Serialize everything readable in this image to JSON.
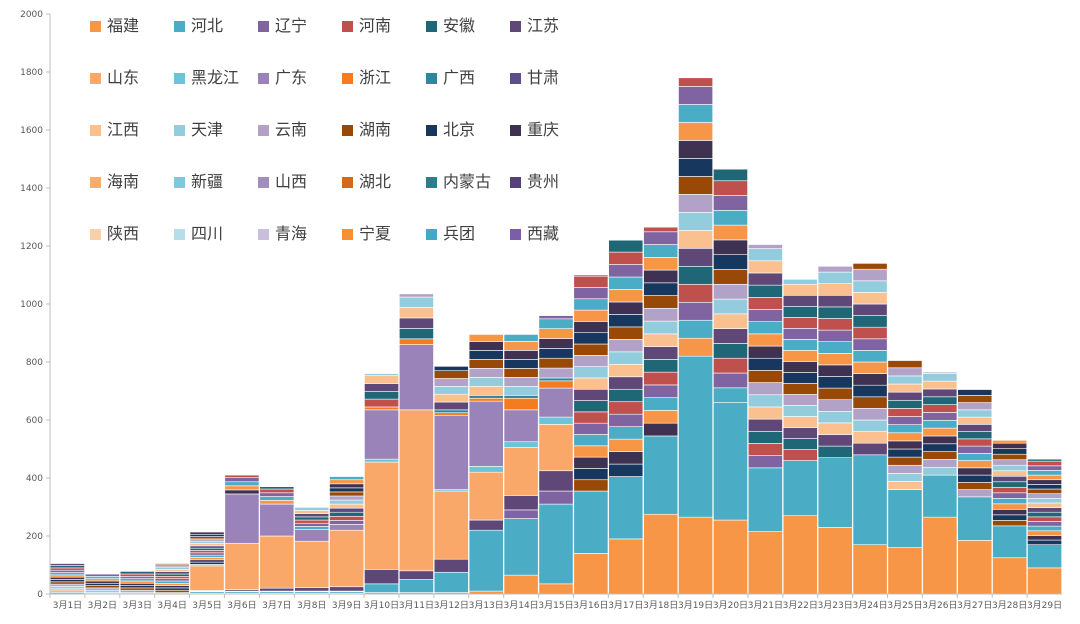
{
  "chart_data": {
    "type": "bar",
    "stacked": true,
    "title": "",
    "xlabel": "",
    "ylabel": "",
    "ylim": [
      0,
      2000
    ],
    "yticks": [
      0,
      200,
      400,
      600,
      800,
      1000,
      1200,
      1400,
      1600,
      1800,
      2000
    ],
    "grid": false,
    "legend_position": "top-left",
    "categories": [
      "3月1日",
      "3月2日",
      "3月3日",
      "3月4日",
      "3月5日",
      "3月6日",
      "3月7日",
      "3月8日",
      "3月9日",
      "3月10日",
      "3月11日",
      "3月12日",
      "3月13日",
      "3月14日",
      "3月15日",
      "3月16日",
      "3月17日",
      "3月18日",
      "3月19日",
      "3月20日",
      "3月21日",
      "3月22日",
      "3月23日",
      "3月24日",
      "3月25日",
      "3月26日",
      "3月27日",
      "3月28日",
      "3月29日"
    ],
    "series": [
      {
        "name": "福建",
        "color": "#f79646",
        "values": [
          5,
          2,
          2,
          2,
          3,
          3,
          3,
          3,
          3,
          5,
          5,
          5,
          10,
          65,
          35,
          140,
          190,
          275,
          265,
          255,
          215,
          270,
          230,
          170,
          160,
          265,
          185,
          125,
          90
        ]
      },
      {
        "name": "河北",
        "color": "#4bacc6",
        "values": [
          5,
          3,
          3,
          3,
          5,
          5,
          5,
          5,
          5,
          30,
          45,
          70,
          210,
          195,
          275,
          215,
          215,
          270,
          555,
          405,
          220,
          190,
          240,
          310,
          200,
          145,
          150,
          110,
          80
        ]
      },
      {
        "name": "辽宁",
        "color": "#8064a2",
        "values": [
          0,
          0,
          0,
          0,
          2,
          0,
          0,
          0,
          0,
          0,
          0,
          0,
          0,
          30,
          45,
          0,
          0,
          0,
          0,
          0,
          0,
          0,
          0,
          0,
          0,
          0,
          0,
          0,
          0
        ]
      },
      {
        "name": "河南",
        "color": "#c0504d",
        "values": [
          0,
          0,
          0,
          0,
          2,
          0,
          2,
          2,
          2,
          0,
          0,
          0,
          0,
          0,
          0,
          0,
          0,
          0,
          0,
          0,
          0,
          0,
          0,
          0,
          0,
          0,
          0,
          0,
          0
        ]
      },
      {
        "name": "安徽",
        "color": "#1f6777",
        "values": [
          0,
          0,
          0,
          0,
          0,
          2,
          0,
          0,
          0,
          0,
          0,
          0,
          0,
          0,
          0,
          0,
          0,
          0,
          0,
          0,
          0,
          0,
          0,
          0,
          0,
          0,
          0,
          0,
          0
        ]
      },
      {
        "name": "江苏",
        "color": "#5f4778",
        "values": [
          0,
          0,
          0,
          0,
          0,
          5,
          10,
          12,
          15,
          50,
          30,
          45,
          35,
          50,
          70,
          0,
          0,
          0,
          0,
          0,
          0,
          0,
          0,
          0,
          0,
          0,
          0,
          0,
          0
        ]
      },
      {
        "name": "山东",
        "color": "#f9a86a",
        "values": [
          0,
          0,
          0,
          0,
          85,
          160,
          180,
          160,
          195,
          370,
          555,
          235,
          165,
          165,
          160,
          0,
          0,
          0,
          0,
          0,
          0,
          0,
          0,
          0,
          0,
          0,
          0,
          0,
          0
        ]
      },
      {
        "name": "黑龙江",
        "color": "#6dc3d7",
        "values": [
          0,
          0,
          0,
          0,
          5,
          0,
          0,
          0,
          0,
          10,
          0,
          5,
          20,
          20,
          25,
          0,
          0,
          0,
          0,
          0,
          0,
          0,
          0,
          0,
          0,
          0,
          0,
          0,
          0
        ]
      },
      {
        "name": "广东",
        "color": "#9a83b8",
        "values": [
          0,
          0,
          0,
          0,
          0,
          170,
          110,
          40,
          20,
          170,
          225,
          255,
          225,
          110,
          100,
          0,
          0,
          0,
          0,
          0,
          0,
          0,
          0,
          0,
          0,
          0,
          0,
          0,
          0
        ]
      },
      {
        "name": "浙江",
        "color": "#f27c1f",
        "values": [
          0,
          0,
          0,
          0,
          0,
          0,
          0,
          0,
          0,
          10,
          20,
          10,
          10,
          40,
          25,
          0,
          0,
          0,
          0,
          0,
          0,
          0,
          0,
          0,
          0,
          0,
          0,
          0,
          0
        ]
      },
      {
        "name": "广西",
        "color": "#31859c",
        "values": [
          0,
          0,
          0,
          0,
          0,
          0,
          0,
          0,
          0,
          0,
          0,
          10,
          10,
          10,
          10,
          0,
          0,
          0,
          0,
          0,
          0,
          0,
          0,
          0,
          0,
          0,
          0,
          0,
          0
        ]
      },
      {
        "name": "甘肃",
        "color": "#5d4e8a",
        "values": [
          0,
          0,
          0,
          0,
          0,
          0,
          0,
          0,
          0,
          0,
          0,
          0,
          0,
          0,
          0,
          0,
          0,
          0,
          0,
          0,
          0,
          0,
          0,
          0,
          0,
          0,
          0,
          0,
          0
        ]
      },
      {
        "name": "江西",
        "color": "#fac090",
        "values": [
          0,
          0,
          0,
          0,
          0,
          0,
          0,
          0,
          0,
          0,
          0,
          0,
          0,
          0,
          0,
          0,
          0,
          0,
          0,
          0,
          0,
          0,
          0,
          0,
          0,
          0,
          0,
          0,
          0
        ]
      },
      {
        "name": "天津",
        "color": "#93cddd",
        "values": [
          0,
          0,
          0,
          0,
          0,
          0,
          0,
          0,
          0,
          0,
          0,
          0,
          0,
          0,
          0,
          0,
          0,
          0,
          0,
          0,
          0,
          0,
          0,
          0,
          0,
          0,
          0,
          0,
          0
        ]
      },
      {
        "name": "云南",
        "color": "#b3a2c7",
        "values": [
          0,
          0,
          0,
          0,
          0,
          0,
          0,
          0,
          0,
          0,
          0,
          0,
          0,
          0,
          0,
          0,
          0,
          0,
          0,
          0,
          0,
          0,
          0,
          0,
          0,
          0,
          0,
          0,
          0
        ]
      },
      {
        "name": "湖南",
        "color": "#984807",
        "values": [
          0,
          0,
          0,
          0,
          0,
          0,
          0,
          0,
          0,
          0,
          0,
          0,
          0,
          0,
          0,
          0,
          0,
          0,
          0,
          0,
          0,
          0,
          0,
          0,
          0,
          0,
          0,
          0,
          0
        ]
      },
      {
        "name": "北京",
        "color": "#17375e",
        "values": [
          0,
          0,
          0,
          0,
          0,
          0,
          0,
          0,
          0,
          0,
          0,
          0,
          0,
          0,
          0,
          0,
          0,
          0,
          0,
          0,
          0,
          0,
          0,
          0,
          0,
          0,
          0,
          0,
          0
        ]
      },
      {
        "name": "重庆",
        "color": "#3f3151",
        "values": [
          0,
          0,
          0,
          0,
          0,
          0,
          0,
          0,
          0,
          0,
          0,
          0,
          0,
          0,
          0,
          0,
          0,
          0,
          0,
          0,
          0,
          0,
          0,
          0,
          0,
          0,
          0,
          0,
          0
        ]
      },
      {
        "name": "海南",
        "color": "#f8ad6d",
        "values": [
          0,
          0,
          0,
          0,
          0,
          0,
          0,
          0,
          0,
          0,
          0,
          0,
          0,
          0,
          0,
          0,
          0,
          0,
          0,
          0,
          0,
          0,
          0,
          0,
          0,
          0,
          0,
          0,
          0
        ]
      },
      {
        "name": "新疆",
        "color": "#7fc7db",
        "values": [
          0,
          0,
          0,
          0,
          0,
          0,
          0,
          0,
          0,
          0,
          0,
          0,
          0,
          0,
          0,
          0,
          0,
          0,
          0,
          0,
          0,
          0,
          0,
          0,
          0,
          0,
          0,
          0,
          0
        ]
      },
      {
        "name": "山西",
        "color": "#a28dbf",
        "values": [
          0,
          0,
          0,
          0,
          0,
          0,
          0,
          0,
          0,
          0,
          0,
          0,
          0,
          0,
          0,
          0,
          0,
          0,
          0,
          0,
          0,
          0,
          0,
          0,
          0,
          0,
          0,
          0,
          0
        ]
      },
      {
        "name": "湖北",
        "color": "#d2691e",
        "values": [
          0,
          0,
          0,
          0,
          0,
          0,
          0,
          0,
          0,
          0,
          0,
          0,
          0,
          0,
          0,
          0,
          0,
          0,
          0,
          0,
          0,
          0,
          0,
          0,
          0,
          0,
          0,
          0,
          0
        ]
      },
      {
        "name": "内蒙古",
        "color": "#2d7d8c",
        "values": [
          0,
          0,
          0,
          0,
          0,
          0,
          0,
          0,
          0,
          0,
          0,
          0,
          0,
          0,
          0,
          0,
          0,
          0,
          0,
          0,
          0,
          0,
          0,
          0,
          0,
          0,
          0,
          0,
          0
        ]
      },
      {
        "name": "贵州",
        "color": "#554178",
        "values": [
          0,
          0,
          0,
          0,
          0,
          0,
          0,
          0,
          0,
          0,
          0,
          0,
          0,
          0,
          0,
          0,
          0,
          0,
          0,
          0,
          0,
          0,
          0,
          0,
          0,
          0,
          0,
          0,
          0
        ]
      },
      {
        "name": "陕西",
        "color": "#fbcfa8",
        "values": [
          0,
          0,
          0,
          0,
          0,
          0,
          0,
          0,
          0,
          0,
          0,
          0,
          0,
          0,
          0,
          0,
          0,
          0,
          0,
          0,
          0,
          0,
          0,
          0,
          0,
          0,
          0,
          0,
          0
        ]
      },
      {
        "name": "四川",
        "color": "#b7dee8",
        "values": [
          0,
          0,
          0,
          0,
          0,
          0,
          0,
          0,
          0,
          0,
          0,
          0,
          0,
          0,
          0,
          0,
          0,
          0,
          0,
          0,
          0,
          0,
          0,
          0,
          0,
          0,
          0,
          0,
          0
        ]
      },
      {
        "name": "青海",
        "color": "#c9bedb",
        "values": [
          0,
          0,
          0,
          0,
          0,
          0,
          0,
          0,
          0,
          0,
          0,
          0,
          0,
          0,
          0,
          0,
          0,
          0,
          0,
          0,
          0,
          0,
          0,
          0,
          0,
          0,
          0,
          0,
          0
        ]
      },
      {
        "name": "宁夏",
        "color": "#f79030",
        "values": [
          0,
          0,
          0,
          0,
          0,
          0,
          0,
          0,
          0,
          0,
          0,
          0,
          0,
          0,
          0,
          0,
          0,
          0,
          0,
          0,
          0,
          0,
          0,
          0,
          0,
          0,
          0,
          0,
          0
        ]
      },
      {
        "name": "兵团",
        "color": "#45a8c4",
        "values": [
          0,
          0,
          0,
          0,
          0,
          0,
          0,
          0,
          0,
          0,
          0,
          0,
          0,
          0,
          0,
          0,
          0,
          0,
          0,
          0,
          0,
          0,
          0,
          0,
          0,
          0,
          0,
          0,
          0
        ]
      },
      {
        "name": "西藏",
        "color": "#7b5ea7",
        "values": [
          0,
          0,
          0,
          0,
          0,
          0,
          0,
          0,
          0,
          0,
          0,
          0,
          0,
          0,
          0,
          0,
          0,
          0,
          0,
          0,
          0,
          0,
          0,
          0,
          0,
          0,
          0,
          0,
          0
        ]
      }
    ],
    "approx_totals": [
      105,
      70,
      80,
      105,
      215,
      410,
      370,
      300,
      405,
      760,
      1035,
      785,
      895,
      895,
      960,
      1100,
      1220,
      1265,
      1780,
      1465,
      1205,
      1085,
      1130,
      1140,
      805,
      765,
      705,
      530,
      465
    ]
  }
}
